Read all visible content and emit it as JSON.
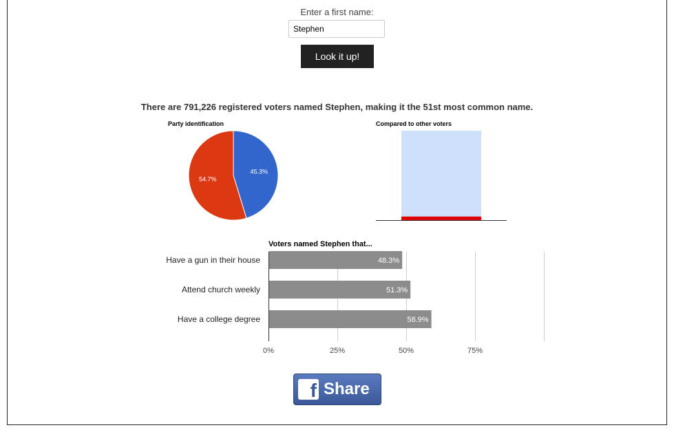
{
  "form": {
    "prompt": "Enter a first name:",
    "input_value": "Stephen",
    "button_label": "Look it up!"
  },
  "summary": "There are 791,226 registered voters named Stephen, making it the 51st most common name.",
  "share": {
    "label": "Share",
    "logo_letter": "f"
  },
  "chart_data": [
    {
      "type": "pie",
      "title": "Party identification",
      "slices": [
        {
          "value": 45.3,
          "label": "45.3%",
          "color": "#3366cc"
        },
        {
          "value": 54.7,
          "label": "54.7%",
          "color": "#dc3912"
        }
      ]
    },
    {
      "type": "bar",
      "title": "Compared to other voters",
      "categories": [
        ""
      ],
      "series": [
        {
          "values": [
            100
          ],
          "color": "#cfe0fc"
        },
        {
          "values": [
            4
          ],
          "color": "#e00000"
        }
      ],
      "ylim": [
        0,
        100
      ]
    },
    {
      "type": "bar",
      "orientation": "horizontal",
      "title": "Voters named Stephen that...",
      "categories": [
        "Have a gun in their house",
        "Attend church weekly",
        "Have a college degree"
      ],
      "values": [
        48.3,
        51.3,
        58.9
      ],
      "value_labels": [
        "48.3%",
        "51.3%",
        "58.9%"
      ],
      "xticks": [
        "0%",
        "25%",
        "50%",
        "75%"
      ],
      "xlim": [
        0,
        100
      ],
      "grid": true,
      "color": "#8c8c8c"
    }
  ]
}
